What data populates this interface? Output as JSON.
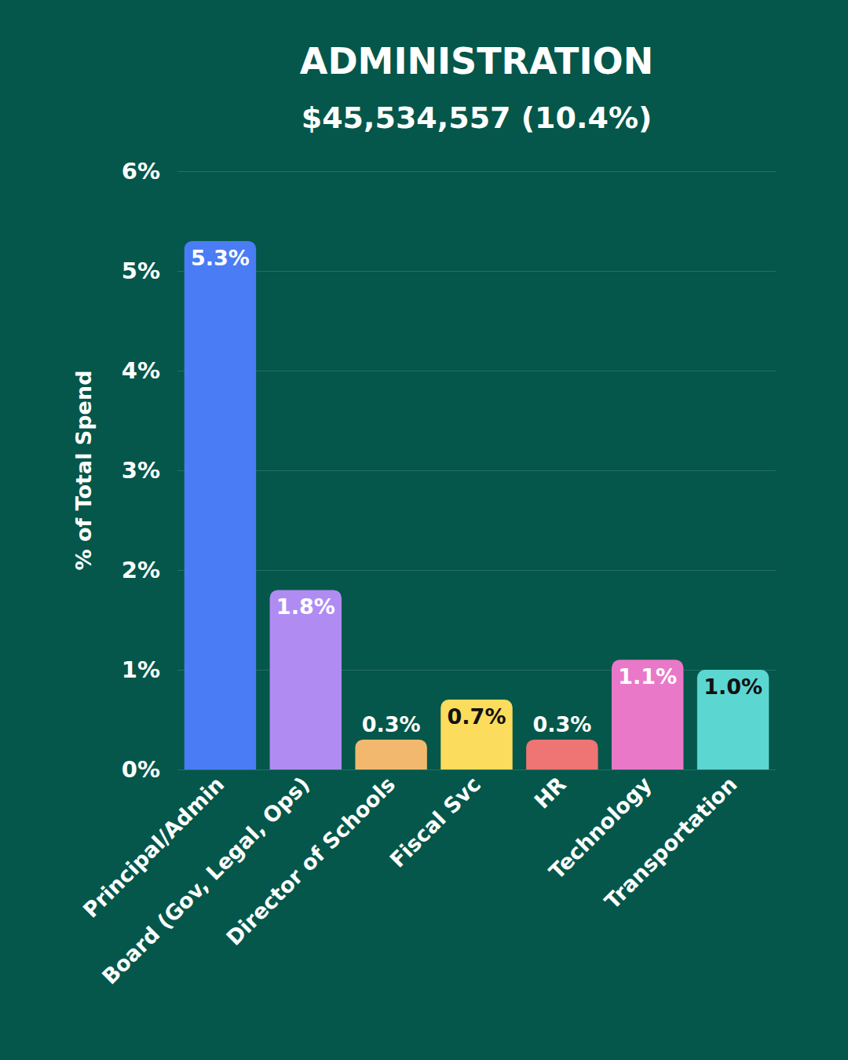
{
  "chart_data": {
    "type": "bar",
    "title": "ADMINISTRATION",
    "subtitle": "$45,534,557 (10.4%)",
    "y_label": "% of Total Spend",
    "categories": [
      "Principal/Admin",
      "Board (Gov, Legal, Ops)",
      "Director of Schools",
      "Fiscal Svc",
      "HR",
      "Technology",
      "Transportation"
    ],
    "values": [
      5.3,
      1.8,
      0.3,
      0.7,
      0.3,
      1.1,
      1.0
    ],
    "value_labels": [
      "5.3%",
      "1.8%",
      "0.3%",
      "0.7%",
      "0.3%",
      "1.1%",
      "1.0%"
    ],
    "colors": [
      "#4a7cf5",
      "#b08cf2",
      "#f2b96e",
      "#fcdc5c",
      "#ef7474",
      "#ea78c8",
      "#5cd6d1"
    ],
    "ylim": [
      0,
      6
    ],
    "yticks": [
      {
        "value": 0,
        "label": "0%"
      },
      {
        "value": 1,
        "label": "1%"
      },
      {
        "value": 2,
        "label": "2%"
      },
      {
        "value": 3,
        "label": "3%"
      },
      {
        "value": 4,
        "label": "4%"
      },
      {
        "value": 5,
        "label": "5%"
      },
      {
        "value": 6,
        "label": "6%"
      }
    ],
    "grid": true,
    "data_labels": true
  }
}
